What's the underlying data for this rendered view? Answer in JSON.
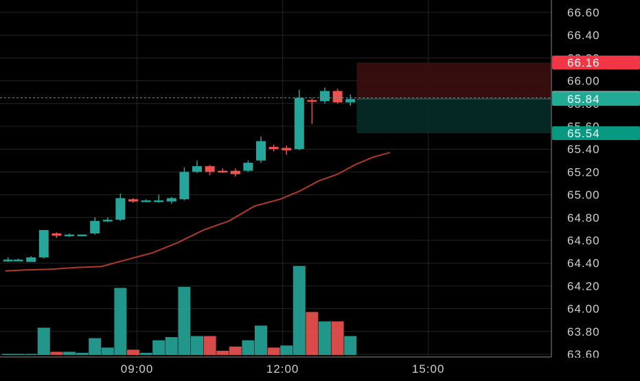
{
  "colors": {
    "background": "#000000",
    "grid": "#262626",
    "axis_line": "#5a5a5a",
    "axis_text": "#cfcfcf",
    "up": "#26a69a",
    "down": "#ef5350",
    "ma_line": "#b23a2a",
    "stop_zone": "#3b0e0e",
    "target_zone": "#062a26",
    "price_tag_gray": "#9aa0a6",
    "price_tag_red": "#f23645",
    "price_tag_teal": "#22ab94",
    "price_tag_teal_dark": "#089981"
  },
  "chart_data": {
    "type": "candlestick",
    "y_axis": {
      "range": [
        63.6,
        66.7
      ],
      "ticks": [
        "66.60",
        "66.40",
        "66.20",
        "66.00",
        "65.80",
        "65.60",
        "65.40",
        "65.20",
        "65.00",
        "64.80",
        "64.60",
        "64.40",
        "64.20",
        "64.00",
        "63.80",
        "63.60"
      ]
    },
    "x_axis": {
      "range": [
        0,
        30.5
      ],
      "ticks": [
        {
          "label": "09:00",
          "x": 10.3
        },
        {
          "label": "12:00",
          "x": 21.7
        },
        {
          "label": "15:00",
          "x": 33.1
        }
      ]
    },
    "candles": [
      {
        "x": 0.2,
        "o": 64.42,
        "h": 64.45,
        "l": 64.41,
        "c": 64.43
      },
      {
        "x": 1.0,
        "o": 64.43,
        "h": 64.44,
        "l": 64.42,
        "c": 64.43
      },
      {
        "x": 2.0,
        "o": 64.41,
        "h": 64.46,
        "l": 64.41,
        "c": 64.45
      },
      {
        "x": 3.0,
        "o": 64.45,
        "h": 64.69,
        "l": 64.44,
        "c": 64.69
      },
      {
        "x": 4.0,
        "o": 64.66,
        "h": 64.67,
        "l": 64.62,
        "c": 64.64
      },
      {
        "x": 5.0,
        "o": 64.64,
        "h": 64.66,
        "l": 64.63,
        "c": 64.65
      },
      {
        "x": 6.0,
        "o": 64.65,
        "h": 64.65,
        "l": 64.64,
        "c": 64.65
      },
      {
        "x": 7.0,
        "o": 64.66,
        "h": 64.8,
        "l": 64.65,
        "c": 64.77
      },
      {
        "x": 8.0,
        "o": 64.78,
        "h": 64.8,
        "l": 64.76,
        "c": 64.78
      },
      {
        "x": 9.0,
        "o": 64.78,
        "h": 65.01,
        "l": 64.77,
        "c": 64.97
      },
      {
        "x": 10.0,
        "o": 64.96,
        "h": 64.97,
        "l": 64.93,
        "c": 64.94
      },
      {
        "x": 11.0,
        "o": 64.95,
        "h": 64.96,
        "l": 64.94,
        "c": 64.95
      },
      {
        "x": 12.0,
        "o": 64.94,
        "h": 65.0,
        "l": 64.93,
        "c": 64.95
      },
      {
        "x": 13.0,
        "o": 64.94,
        "h": 64.98,
        "l": 64.92,
        "c": 64.97
      },
      {
        "x": 14.0,
        "o": 64.96,
        "h": 65.24,
        "l": 64.95,
        "c": 65.2
      },
      {
        "x": 15.0,
        "o": 65.2,
        "h": 65.3,
        "l": 65.19,
        "c": 65.25
      },
      {
        "x": 16.0,
        "o": 65.25,
        "h": 65.26,
        "l": 65.17,
        "c": 65.2
      },
      {
        "x": 17.0,
        "o": 65.21,
        "h": 65.23,
        "l": 65.19,
        "c": 65.2
      },
      {
        "x": 18.0,
        "o": 65.21,
        "h": 65.23,
        "l": 65.16,
        "c": 65.18
      },
      {
        "x": 19.0,
        "o": 65.21,
        "h": 65.3,
        "l": 65.2,
        "c": 65.28
      },
      {
        "x": 20.0,
        "o": 65.3,
        "h": 65.51,
        "l": 65.28,
        "c": 65.47
      },
      {
        "x": 21.0,
        "o": 65.42,
        "h": 65.44,
        "l": 65.38,
        "c": 65.4
      },
      {
        "x": 22.0,
        "o": 65.41,
        "h": 65.43,
        "l": 65.35,
        "c": 65.39
      },
      {
        "x": 23.0,
        "o": 65.4,
        "h": 65.92,
        "l": 65.39,
        "c": 65.85
      },
      {
        "x": 24.0,
        "o": 65.83,
        "h": 65.85,
        "l": 65.62,
        "c": 65.82
      },
      {
        "x": 25.0,
        "o": 65.82,
        "h": 65.94,
        "l": 65.8,
        "c": 65.91
      },
      {
        "x": 26.0,
        "o": 65.91,
        "h": 65.93,
        "l": 65.8,
        "c": 65.81
      },
      {
        "x": 27.0,
        "o": 65.81,
        "h": 65.88,
        "l": 65.78,
        "c": 65.84
      }
    ],
    "volume": {
      "range": [
        0,
        5.0
      ],
      "bars": [
        {
          "x": 0.2,
          "v": 0.05,
          "dir": "up"
        },
        {
          "x": 1.0,
          "v": 0.05,
          "dir": "up"
        },
        {
          "x": 2.0,
          "v": 0.05,
          "dir": "up"
        },
        {
          "x": 3.0,
          "v": 1.3,
          "dir": "up"
        },
        {
          "x": 4.0,
          "v": 0.15,
          "dir": "down"
        },
        {
          "x": 5.0,
          "v": 0.15,
          "dir": "up"
        },
        {
          "x": 6.0,
          "v": 0.1,
          "dir": "up"
        },
        {
          "x": 7.0,
          "v": 0.8,
          "dir": "up"
        },
        {
          "x": 8.0,
          "v": 0.35,
          "dir": "up"
        },
        {
          "x": 9.0,
          "v": 3.2,
          "dir": "up"
        },
        {
          "x": 10.0,
          "v": 0.25,
          "dir": "down"
        },
        {
          "x": 11.0,
          "v": 0.1,
          "dir": "up"
        },
        {
          "x": 12.0,
          "v": 0.7,
          "dir": "up"
        },
        {
          "x": 13.0,
          "v": 0.85,
          "dir": "up"
        },
        {
          "x": 14.0,
          "v": 3.25,
          "dir": "up"
        },
        {
          "x": 15.0,
          "v": 0.9,
          "dir": "up"
        },
        {
          "x": 16.0,
          "v": 0.9,
          "dir": "down"
        },
        {
          "x": 17.0,
          "v": 0.2,
          "dir": "down"
        },
        {
          "x": 18.0,
          "v": 0.4,
          "dir": "down"
        },
        {
          "x": 19.0,
          "v": 0.7,
          "dir": "up"
        },
        {
          "x": 20.0,
          "v": 1.4,
          "dir": "up"
        },
        {
          "x": 21.0,
          "v": 0.35,
          "dir": "down"
        },
        {
          "x": 22.0,
          "v": 0.45,
          "dir": "up"
        },
        {
          "x": 23.0,
          "v": 4.25,
          "dir": "up"
        },
        {
          "x": 24.0,
          "v": 2.05,
          "dir": "down"
        },
        {
          "x": 25.0,
          "v": 1.6,
          "dir": "up"
        },
        {
          "x": 26.0,
          "v": 1.6,
          "dir": "down"
        },
        {
          "x": 27.0,
          "v": 0.9,
          "dir": "up"
        }
      ]
    },
    "moving_average": [
      {
        "x": 0,
        "y": 64.33
      },
      {
        "x": 1.5,
        "y": 64.34
      },
      {
        "x": 3.5,
        "y": 64.345
      },
      {
        "x": 5.5,
        "y": 64.36
      },
      {
        "x": 7.5,
        "y": 64.37
      },
      {
        "x": 9.5,
        "y": 64.43
      },
      {
        "x": 11.5,
        "y": 64.49
      },
      {
        "x": 13.5,
        "y": 64.58
      },
      {
        "x": 15.5,
        "y": 64.69
      },
      {
        "x": 17.5,
        "y": 64.77
      },
      {
        "x": 19.5,
        "y": 64.9
      },
      {
        "x": 21.5,
        "y": 64.96
      },
      {
        "x": 23.0,
        "y": 65.03
      },
      {
        "x": 24.5,
        "y": 65.12
      },
      {
        "x": 26.0,
        "y": 65.18
      },
      {
        "x": 27.5,
        "y": 65.27
      },
      {
        "x": 28.8,
        "y": 65.33
      },
      {
        "x": 30.1,
        "y": 65.37
      }
    ],
    "position_tool": {
      "entry": 65.84,
      "stop": 66.16,
      "target": 65.54,
      "x_start": 27.5,
      "x_end": 30.5
    },
    "price_tags": [
      {
        "label": "66.16",
        "value": 66.16,
        "color_key": "price_tag_red"
      },
      {
        "label": "65.85",
        "value": 65.85,
        "color_key": "price_tag_gray"
      },
      {
        "label": "65.84",
        "value": 65.84,
        "color_key": "price_tag_teal"
      },
      {
        "label": "65.54",
        "value": 65.54,
        "color_key": "price_tag_teal_dark"
      }
    ],
    "last_price": 65.85,
    "grid": true
  }
}
